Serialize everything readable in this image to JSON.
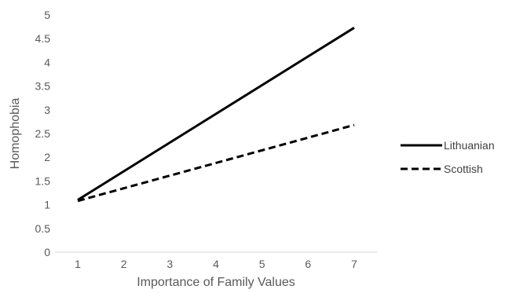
{
  "chart_data": {
    "type": "line",
    "xlabel": "Importance of Family Values",
    "ylabel": "Homophobia",
    "x": [
      1,
      7
    ],
    "xticks": [
      "1",
      "2",
      "3",
      "4",
      "5",
      "6",
      "7"
    ],
    "ylim": [
      0,
      5
    ],
    "yticks": [
      "0",
      "0.5",
      "1",
      "1.5",
      "2",
      "2.5",
      "3",
      "3.5",
      "4",
      "4.5",
      "5"
    ],
    "grid": false,
    "legend": "right",
    "series": [
      {
        "name": "Lithuanian",
        "values": [
          1.1,
          4.73
        ],
        "style": "solid",
        "color": "#000000"
      },
      {
        "name": "Scottish",
        "values": [
          1.08,
          2.68
        ],
        "style": "dashed",
        "color": "#000000"
      }
    ]
  }
}
